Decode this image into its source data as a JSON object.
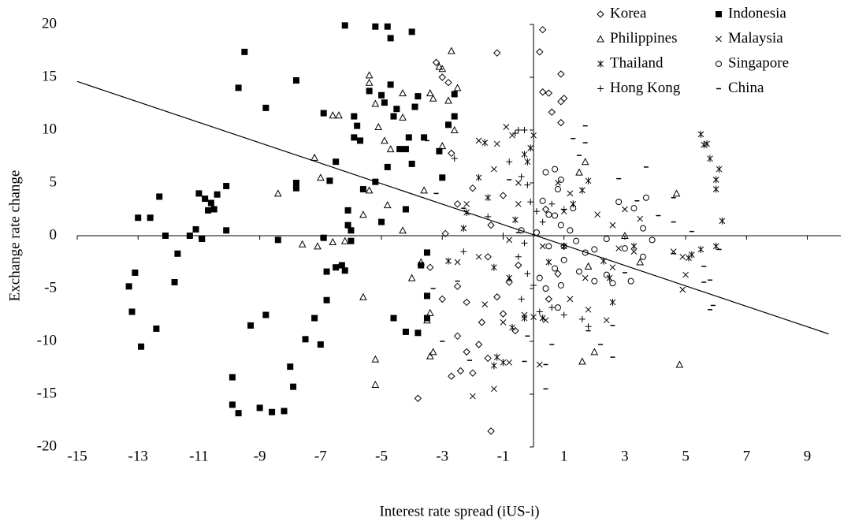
{
  "chart_data": {
    "type": "scatter",
    "x_label": "Interest rate spread (iUS-i)",
    "y_label": "Exchange rate change",
    "xlim": [
      -15,
      10.1
    ],
    "ylim": [
      -20,
      20
    ],
    "xticks": [
      -15,
      -13,
      -11,
      -9,
      -7,
      -5,
      -3,
      -1,
      1,
      3,
      5,
      7,
      9
    ],
    "yticks": [
      -20,
      -15,
      -10,
      -5,
      0,
      5,
      10,
      15,
      20
    ],
    "legend": "top-right",
    "trendline": {
      "color": "#000000",
      "x": [
        -15,
        9.7
      ],
      "y": [
        14.6,
        -9.3
      ]
    },
    "series": [
      {
        "name": "Korea",
        "marker": "diamond",
        "color": "#000000",
        "x": [
          0.3,
          0.2,
          -1.2,
          0.3,
          0.5,
          0.9,
          0.9,
          1,
          0.6,
          0.9,
          -3,
          -2.8,
          -3.2,
          -1.4,
          -3.8,
          -2.7,
          -2.4,
          -2,
          -1.5,
          -2.2,
          -1.8,
          -2.5,
          -3,
          -2.5,
          -2.2,
          -1.7,
          -1,
          -0.6,
          -1.2,
          -0.8,
          -1.5,
          -2.5,
          -2,
          -2.7,
          -1.4,
          0.5,
          0.8,
          1,
          0.4,
          -1,
          -0.5,
          -2.9,
          -3.4
        ],
        "y": [
          19.5,
          17.4,
          17.3,
          13.6,
          13.5,
          15.3,
          12.7,
          13,
          11.7,
          10.7,
          15,
          14.5,
          16.4,
          -18.5,
          -15.4,
          -13.3,
          -12.8,
          -13,
          -11.6,
          -11,
          -10.3,
          -9.5,
          -6,
          -4.8,
          -6.3,
          -8.2,
          -7.4,
          -9,
          -5.8,
          -4.4,
          -2,
          3,
          4.5,
          7.8,
          1,
          -6,
          -3.6,
          -1,
          2.5,
          3.8,
          -2.8,
          0.2,
          -3
        ]
      },
      {
        "name": "Indonesia",
        "marker": "square",
        "color": "#000000",
        "x": [
          -13.3,
          -13.2,
          -13.1,
          -13,
          -12.9,
          -12.6,
          -12.4,
          -12.3,
          -12.1,
          -11.8,
          -11.7,
          -11.3,
          -11.1,
          -11,
          -10.9,
          -10.8,
          -10.7,
          -10.6,
          -10.5,
          -10.4,
          -10.1,
          -10.1,
          -9.9,
          -9.9,
          -9.7,
          -9.7,
          -9.5,
          -9.3,
          -9,
          -8.8,
          -8.8,
          -8.6,
          -8.4,
          -8.2,
          -8,
          -7.9,
          -7.8,
          -7.8,
          -7.8,
          -7.5,
          -7.2,
          -7,
          -6.9,
          -6.9,
          -6.8,
          -6.8,
          -6.7,
          -6.5,
          -6.5,
          -6.3,
          -6.2,
          -6.2,
          -6.1,
          -6.1,
          -6,
          -6,
          -5.9,
          -5.9,
          -5.8,
          -5.7,
          -5.6,
          -5.4,
          -5.2,
          -5.2,
          -5,
          -5,
          -4.9,
          -4.8,
          -4.8,
          -4.7,
          -4.7,
          -4.6,
          -4.6,
          -4.5,
          -4.4,
          -4.2,
          -4.2,
          -4.2,
          -4.1,
          -4,
          -4,
          -3.9,
          -3.8,
          -3.8,
          -3.7,
          -3.6,
          -3.5,
          -3.5,
          -3.5,
          -3.1,
          -3,
          -2.8,
          -2.6,
          -2.6
        ],
        "y": [
          -4.8,
          -7.2,
          -3.5,
          1.7,
          -10.5,
          1.7,
          -8.8,
          3.7,
          0,
          -4.4,
          -1.7,
          0,
          0.6,
          4,
          -0.3,
          3.5,
          2.4,
          3.1,
          2.5,
          3.9,
          4.7,
          0.5,
          -13.4,
          -16,
          -16.8,
          14,
          17.4,
          -8.5,
          -16.3,
          -7.5,
          12.1,
          -16.7,
          -0.4,
          -16.6,
          -12.4,
          -14.3,
          14.7,
          4.5,
          5,
          -9.8,
          -7.8,
          -10.3,
          11.6,
          -0.2,
          -6.1,
          -3.4,
          5.2,
          7,
          -3,
          -2.8,
          19.9,
          -3.3,
          2.4,
          1,
          0.5,
          -0.5,
          11.3,
          9.3,
          10.4,
          9,
          4.4,
          13.7,
          19.8,
          5.1,
          13.3,
          1.3,
          12.6,
          19.8,
          6.5,
          18.7,
          14.3,
          11.3,
          -7.8,
          12,
          8.2,
          8.2,
          2.5,
          -9.1,
          9.3,
          6.8,
          19.3,
          12.2,
          13.2,
          -9.2,
          -2.8,
          9.3,
          -1.6,
          -5.7,
          -7.8,
          8,
          5.5,
          10.5,
          13.4,
          11.3
        ]
      },
      {
        "name": "Philippines",
        "marker": "triangle",
        "color": "#000000",
        "x": [
          -8.4,
          -7.2,
          -7,
          -6.6,
          -6.4,
          -5.4,
          -5.4,
          -5.2,
          -5.1,
          -4.9,
          -4.7,
          -4.3,
          -4.3,
          -3.4,
          -3.3,
          -3.1,
          -3,
          -2.7,
          -2.5,
          -2.8,
          -5.2,
          -5.2,
          -5.6,
          -3.4,
          -3.3,
          -3.5,
          -3.4,
          -4,
          -3.7,
          -7.1,
          -6.6,
          -6.2,
          -5.6,
          -5.4,
          -4.8,
          -4.3,
          -3.6,
          -3,
          -2.6,
          1.5,
          1.7,
          1.8,
          2,
          1.6,
          4.7,
          4.8,
          3,
          3.5,
          -7.6
        ],
        "y": [
          4,
          7.4,
          5.5,
          11.4,
          11.4,
          15.2,
          14.5,
          12.5,
          10.3,
          9,
          8.2,
          13.5,
          11.2,
          13.5,
          13,
          16,
          15.8,
          17.5,
          14,
          12.8,
          -11.7,
          -14.1,
          -5.8,
          -11.4,
          -11,
          -8,
          -7.3,
          -4,
          -2.5,
          -1,
          -0.6,
          -0.5,
          2,
          4.3,
          2.9,
          0.5,
          4.3,
          8.5,
          10,
          6,
          7,
          -2.9,
          -11,
          -11.9,
          4,
          -12.2,
          0,
          -2.5,
          -0.8
        ]
      },
      {
        "name": "Malaysia",
        "marker": "x",
        "color": "#000000",
        "x": [
          -0.9,
          -0.7,
          -1.2,
          -1.8,
          -1.3,
          -0.5,
          0.8,
          1.2,
          2.1,
          2.6,
          3,
          3.5,
          3.3,
          2.6,
          1.7,
          1.2,
          0.4,
          -0.3,
          -1,
          -1.6,
          -2,
          -1.3,
          -0.8,
          0.2,
          -1.8,
          -2.2,
          -2.5,
          4.9,
          5,
          4.9,
          4.6,
          1.8,
          2.4,
          -0.5,
          0.3,
          -0.8,
          2.8,
          1
        ],
        "y": [
          10.3,
          9.5,
          8.7,
          9,
          6.3,
          5,
          5,
          4,
          2,
          1,
          2.5,
          1.6,
          -1.5,
          -3,
          -4,
          -6,
          -8,
          -7.5,
          -8.2,
          -6.5,
          -15.2,
          -14.5,
          -12,
          -12.2,
          -2,
          3,
          -2.5,
          -5.1,
          -3.7,
          -2,
          -1.5,
          -7,
          -8,
          3,
          -1,
          -0.4,
          -1.2,
          2.3
        ]
      },
      {
        "name": "Thailand",
        "marker": "asterisk",
        "color": "#000000",
        "x": [
          5.5,
          5.7,
          5.6,
          5.8,
          6.1,
          6,
          6,
          6.2,
          6,
          5.2,
          5.1,
          5.5,
          -1.3,
          -1,
          -1.2,
          -0.7,
          -0.3,
          0,
          0.3,
          -0.3,
          -0.1,
          0,
          -0.2,
          -1.6,
          -1.8,
          -1.5,
          -2.2,
          -1.3,
          -0.8,
          0.5,
          1.3,
          1.8,
          1.6,
          2.3,
          2.5,
          2.6,
          3.3,
          1,
          -2.8,
          -2.3,
          -0.6
        ],
        "y": [
          9.6,
          8.7,
          8.6,
          7.3,
          6.3,
          5.3,
          4.4,
          1.4,
          -1,
          -1.8,
          -2.1,
          -1.3,
          -12.3,
          -12,
          -11.5,
          -8.7,
          -7.8,
          -7.7,
          -7.8,
          7.7,
          8.3,
          9.5,
          7,
          8.8,
          5.5,
          3.6,
          2.2,
          -3,
          -4,
          -2.5,
          3,
          5.2,
          4.3,
          -2.4,
          -4,
          -6.3,
          -1,
          -1,
          -2.4,
          0.7,
          1.5
        ]
      },
      {
        "name": "Singapore",
        "marker": "circle",
        "color": "#000000",
        "x": [
          0.4,
          0.7,
          0.9,
          0.8,
          0.3,
          0.5,
          0.9,
          1.2,
          1.4,
          1.7,
          2,
          2.4,
          2.8,
          3.3,
          3.7,
          3.6,
          3.9,
          3.6,
          3,
          2.4,
          2,
          1.5,
          1,
          0.7,
          0.2,
          0.4,
          0.8,
          0.5,
          0.1,
          1.3,
          2.6,
          3.2,
          0.9,
          -0.4,
          0.7
        ],
        "y": [
          6,
          6.3,
          5.3,
          4.4,
          3.3,
          2,
          1,
          0.5,
          -0.5,
          -1.6,
          -1.3,
          -0.3,
          3.2,
          2.6,
          3.6,
          0.7,
          -0.4,
          -2,
          -1.2,
          -3.7,
          -4.3,
          -3.4,
          -2.3,
          -3.1,
          -4,
          -5,
          -6.8,
          -1,
          0.3,
          2.6,
          -4.5,
          -4.3,
          -4.7,
          0.5,
          1.9
        ]
      },
      {
        "name": "Hong Kong",
        "marker": "plus",
        "color": "#000000",
        "x": [
          -0.5,
          -0.3,
          -0.6,
          -0.8,
          -0.4,
          -0.2,
          -0.1,
          0.1,
          0.3,
          -0.3,
          -0.5,
          -0.2,
          0,
          -0.4,
          0.2,
          0.6,
          1,
          1.6,
          1.8,
          -2.3,
          -2.6,
          -2.8,
          -1.5,
          -1,
          0.6,
          1
        ],
        "y": [
          10,
          10,
          9.7,
          7,
          5.6,
          4.8,
          3.2,
          2.3,
          1.3,
          -0.7,
          -2,
          -3.6,
          -4.7,
          -6,
          -7.2,
          -6.8,
          -7.5,
          -7.9,
          -8.6,
          -1.5,
          7.3,
          10.5,
          1.8,
          0,
          3,
          2.5
        ]
      },
      {
        "name": "China",
        "marker": "dash",
        "color": "#000000",
        "x": [
          1.7,
          1.7,
          1.3,
          1.5,
          3.7,
          2.8,
          4.6,
          3.4,
          4.1,
          4.6,
          5.2,
          5.6,
          5.6,
          5.8,
          6.1,
          5.9,
          5.8,
          4.6,
          3,
          2.6,
          2.2,
          2.6,
          1.8,
          0.4,
          0.4,
          -0.3,
          0.6,
          -0.2,
          -2.5,
          -3.3,
          -3.5,
          -3,
          -2.1,
          -3.2,
          -3.5,
          -2.3,
          -0.8,
          -0.5
        ],
        "y": [
          10.4,
          8.8,
          9.2,
          7.6,
          6.5,
          5.4,
          3.6,
          3.3,
          1.9,
          1.3,
          0.4,
          -2.9,
          -4.4,
          -4.2,
          -1.3,
          -6.6,
          -7,
          -1.7,
          -3.5,
          -8.5,
          -10.3,
          -11.5,
          -9,
          -14.5,
          -12.2,
          -11.9,
          -10.3,
          -9.5,
          -4.3,
          -5,
          -5.8,
          -10,
          -11.8,
          4,
          9,
          2.6,
          5.3,
          0.3
        ]
      }
    ]
  }
}
